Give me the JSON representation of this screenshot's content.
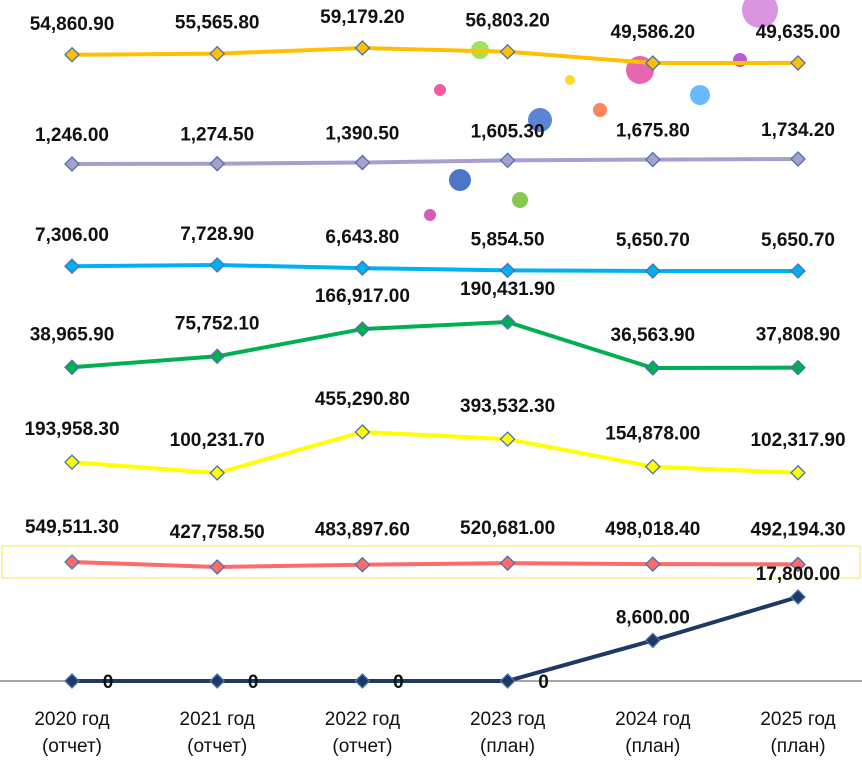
{
  "chart_data": {
    "type": "line",
    "categories": [
      "2020 год\n(отчет)",
      "2021 год\n(отчет)",
      "2022 год\n(отчет)",
      "2023 год\n(план)",
      "2024 год\n(план)",
      "2025 год\n(план)"
    ],
    "series": [
      {
        "color": "#ffc000",
        "values": [
          54860.9,
          55565.8,
          59179.2,
          56803.2,
          49586.2,
          49635.0
        ],
        "value_labels": [
          "54,860.90",
          "55,565.80",
          "59,179.20",
          "56,803.20",
          "49,586.20",
          "49,635.00"
        ]
      },
      {
        "color": "#a99fcf",
        "values": [
          1246.0,
          1274.5,
          1390.5,
          1605.3,
          1675.8,
          1734.2
        ],
        "value_labels": [
          "1,246.00",
          "1,274.50",
          "1,390.50",
          "1,605.30",
          "1,675.80",
          "1,734.20"
        ]
      },
      {
        "color": "#00b0f0",
        "values": [
          7306.0,
          7728.9,
          6643.8,
          5854.5,
          5650.7,
          5650.7
        ],
        "value_labels": [
          "7,306.00",
          "7,728.90",
          "6,643.80",
          "5,854.50",
          "5,650.70",
          "5,650.70"
        ]
      },
      {
        "color": "#00b050",
        "values": [
          38965.9,
          75752.1,
          166917.0,
          190431.9,
          36563.9,
          37808.9
        ],
        "value_labels": [
          "38,965.90",
          "75,752.10",
          "166,917.00",
          "190,431.90",
          "36,563.90",
          "37,808.90"
        ]
      },
      {
        "color": "#ffff00",
        "values": [
          193958.3,
          100231.7,
          455290.8,
          393532.3,
          154878.0,
          102317.9
        ],
        "value_labels": [
          "193,958.30",
          "100,231.70",
          "455,290.80",
          "393,532.30",
          "154,878.00",
          "102,317.90"
        ]
      },
      {
        "color": "#ff6b6b",
        "values": [
          549511.3,
          427758.5,
          483897.6,
          520681.0,
          498018.4,
          492194.3
        ],
        "value_labels": [
          "549,511.30",
          "427,758.50",
          "483,897.60",
          "520,681.00",
          "498,018.40",
          "492,194.30"
        ]
      },
      {
        "color": "#1f3864",
        "values": [
          0,
          0,
          0,
          0,
          8600.0,
          17800.0
        ],
        "value_labels": [
          "0",
          "0",
          "0",
          "0",
          "8,600.00",
          "17,800.00"
        ]
      }
    ]
  }
}
